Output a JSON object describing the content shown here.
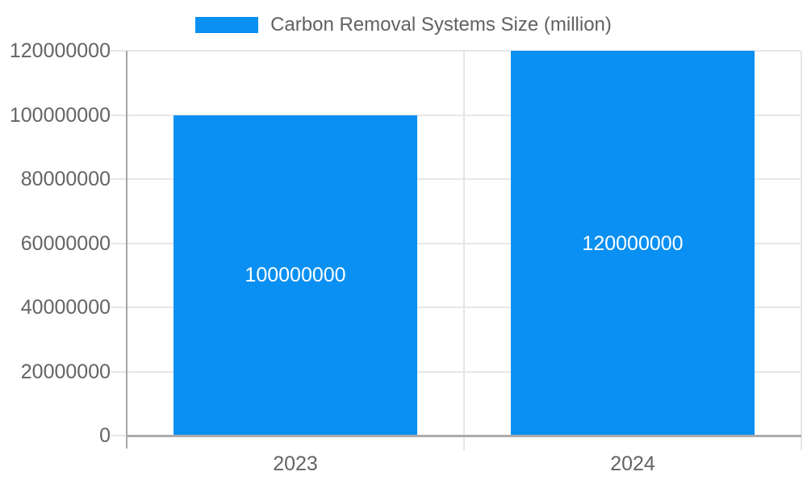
{
  "chart_data": {
    "type": "bar",
    "title": "",
    "xlabel": "",
    "ylabel": "",
    "legend": {
      "label": "Carbon Removal Systems Size (million)",
      "position": "top"
    },
    "categories": [
      "2023",
      "2024"
    ],
    "series": [
      {
        "name": "Carbon Removal Systems Size (million)",
        "values": [
          100000000,
          120000000
        ]
      }
    ],
    "bar_labels": [
      "100000000",
      "120000000"
    ],
    "yticks": [
      0,
      20000000,
      40000000,
      60000000,
      80000000,
      100000000,
      120000000
    ],
    "ytick_labels": [
      "0",
      "20000000",
      "40000000",
      "60000000",
      "80000000",
      "100000000",
      "120000000"
    ],
    "ylim": [
      0,
      120000000
    ],
    "grid": true,
    "colors": {
      "bar": "#0a90f2",
      "bar_label": "#ffffff",
      "axis_text": "#646464",
      "legend_text": "#616161",
      "gridline": "#e6e6e6",
      "axis_line": "#a6a6a6",
      "baseline": "#ababab",
      "background": "#ffffff"
    }
  }
}
